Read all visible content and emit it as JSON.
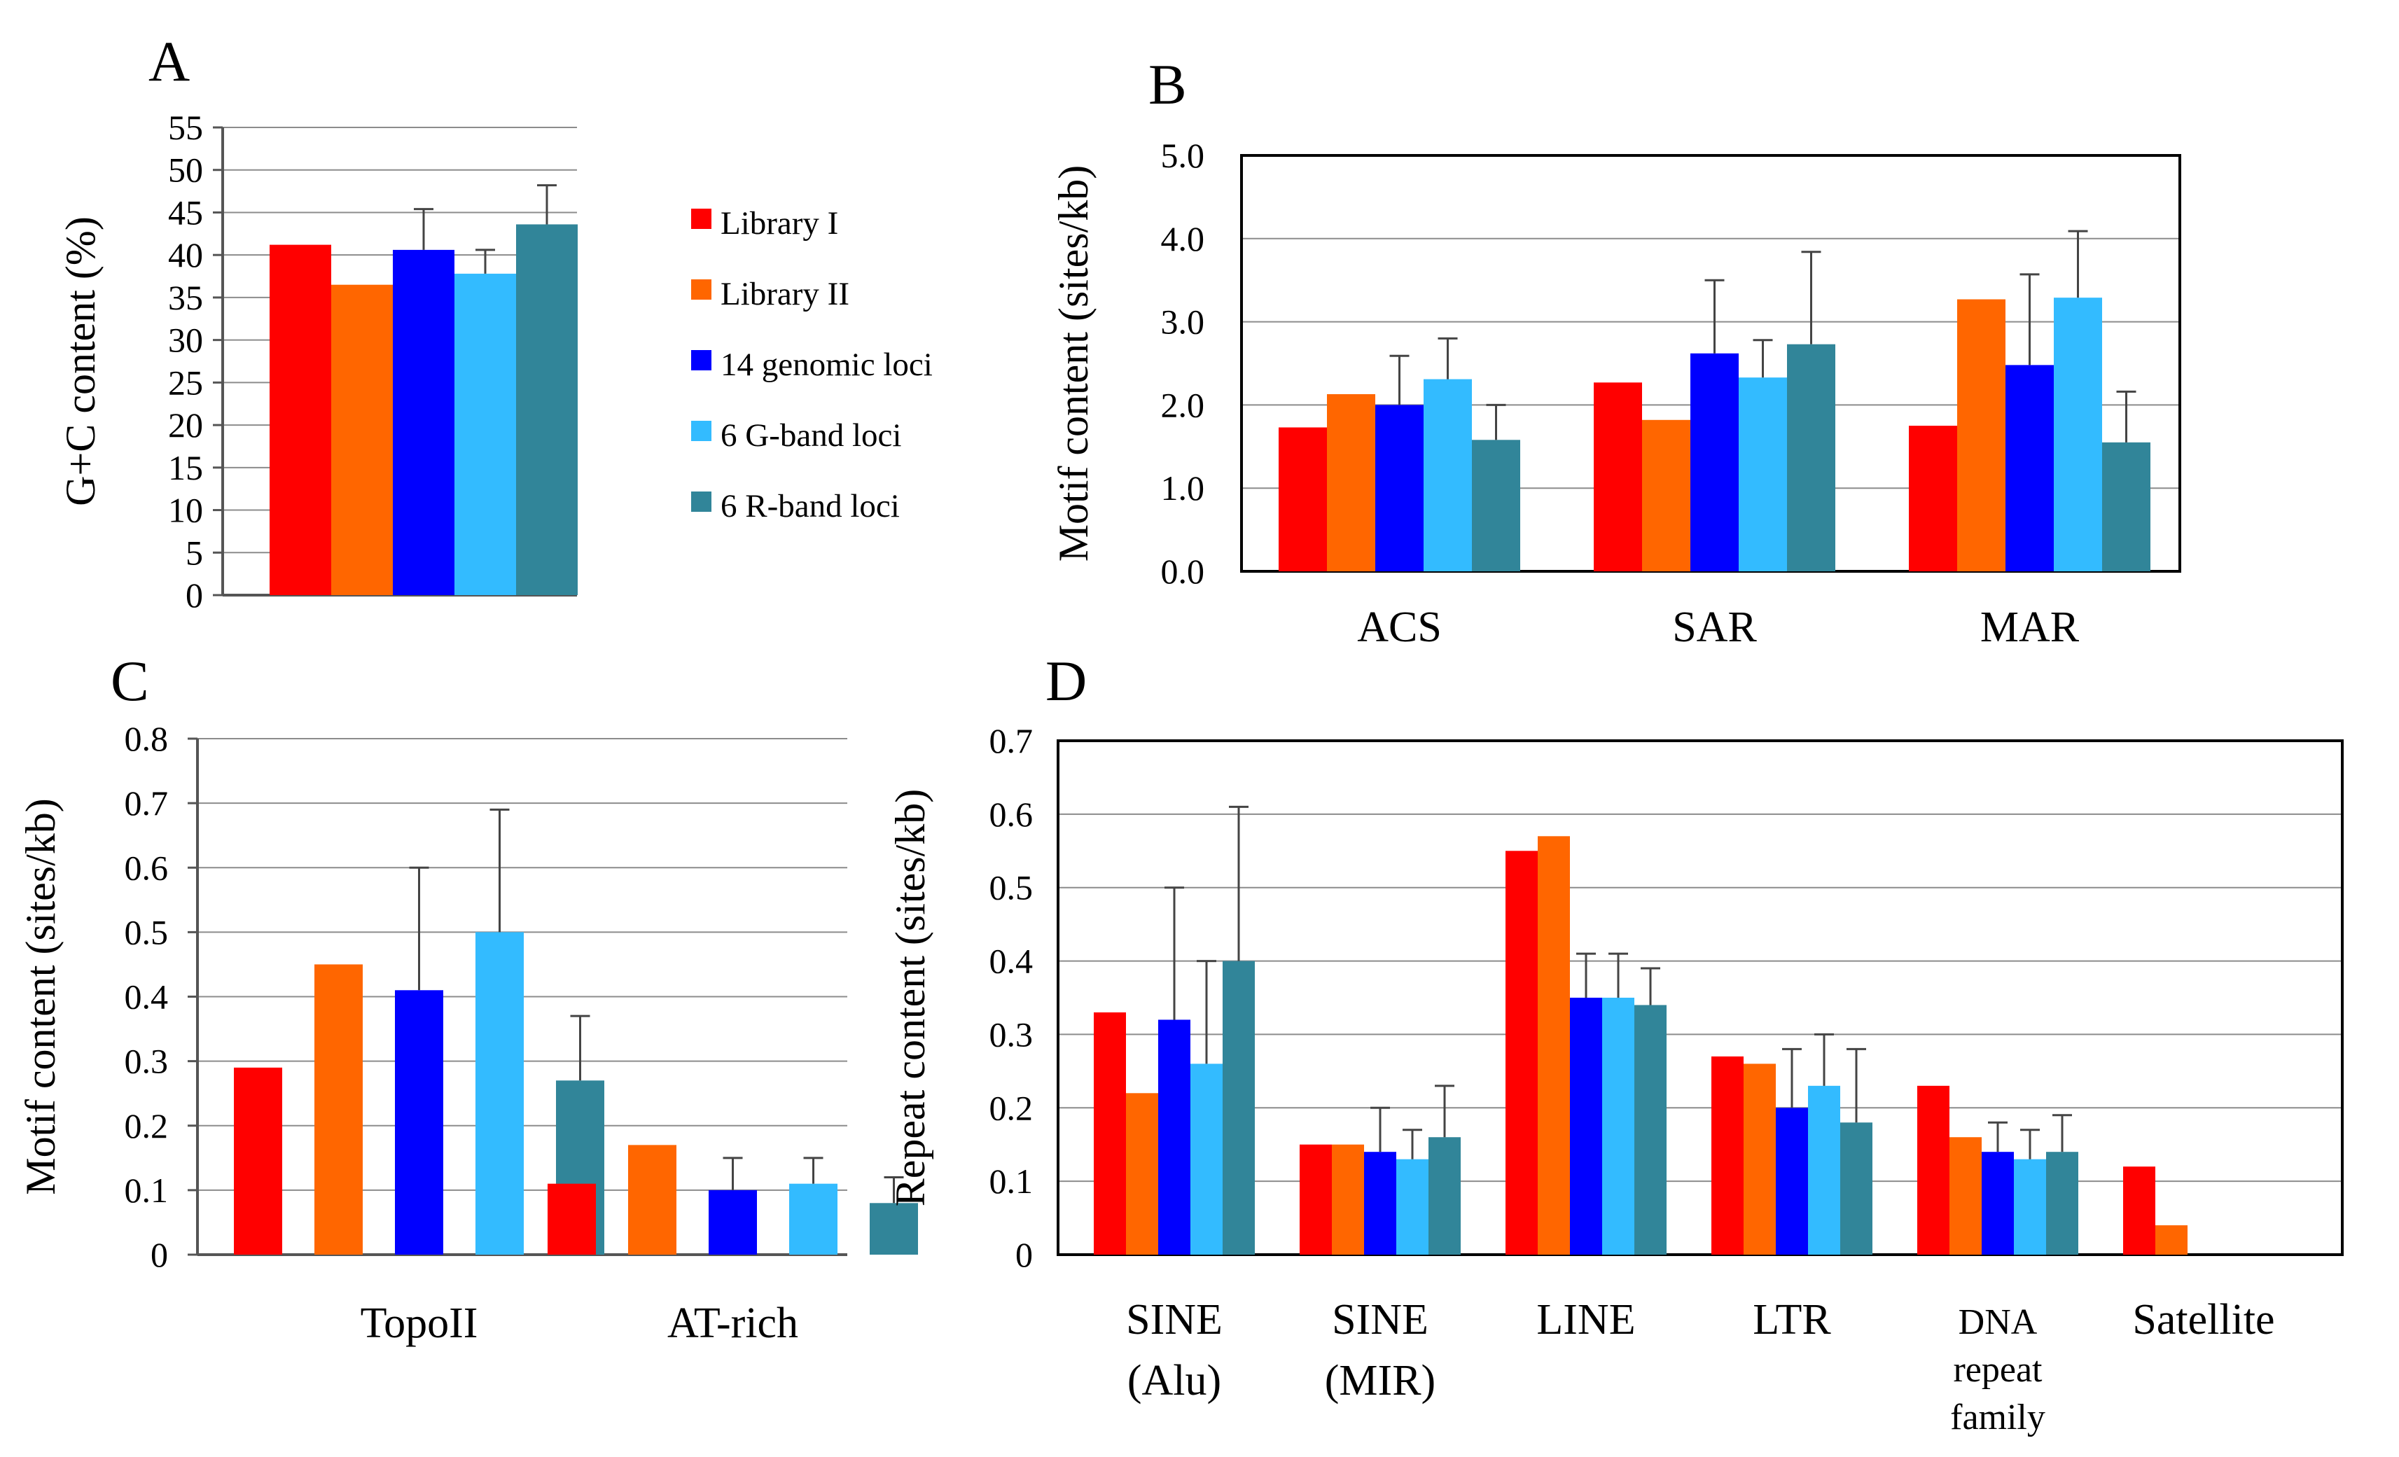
{
  "chart_data": [
    {
      "panel": "A",
      "type": "bar",
      "ylabel": "G+C content (%)",
      "ylim": [
        0,
        55
      ],
      "ytick_labels": [
        "0",
        "5",
        "10",
        "15",
        "20",
        "25",
        "30",
        "35",
        "40",
        "45",
        "50",
        "55"
      ],
      "categories": [
        ""
      ],
      "series": [
        {
          "name": "Library I",
          "values": [
            41.2
          ],
          "errors": [
            null
          ]
        },
        {
          "name": "Library II",
          "values": [
            36.5
          ],
          "errors": [
            null
          ]
        },
        {
          "name": "14 genomic loci",
          "values": [
            40.6
          ],
          "errors": [
            4.8
          ]
        },
        {
          "name": "6 G-band loci",
          "values": [
            37.8
          ],
          "errors": [
            2.8
          ]
        },
        {
          "name": "6 R-band loci",
          "values": [
            43.6
          ],
          "errors": [
            4.6
          ]
        }
      ],
      "grid": "horizontal",
      "legend": "right"
    },
    {
      "panel": "B",
      "type": "bar",
      "ylabel": "Motif content (sites/kb)",
      "ylim": [
        0,
        5
      ],
      "ytick_labels": [
        "0.0",
        "1.0",
        "2.0",
        "3.0",
        "4.0",
        "5.0"
      ],
      "categories": [
        "ACS",
        "SAR",
        "MAR"
      ],
      "series": [
        {
          "name": "Library I",
          "values": [
            1.73,
            2.27,
            1.75
          ],
          "errors": [
            null,
            null,
            null
          ]
        },
        {
          "name": "Library II",
          "values": [
            2.13,
            1.82,
            3.27
          ],
          "errors": [
            null,
            null,
            null
          ]
        },
        {
          "name": "14 genomic loci",
          "values": [
            2.0,
            2.62,
            2.48
          ],
          "errors": [
            0.59,
            0.88,
            1.09
          ]
        },
        {
          "name": "6 G-band loci",
          "values": [
            2.31,
            2.33,
            3.29
          ],
          "errors": [
            0.49,
            0.45,
            0.8
          ]
        },
        {
          "name": "6 R-band loci",
          "values": [
            1.58,
            2.73,
            1.55
          ],
          "errors": [
            0.42,
            1.11,
            0.61
          ]
        }
      ],
      "grid": "horizontal"
    },
    {
      "panel": "C",
      "type": "bar",
      "ylabel": "Motif content (sites/kb)",
      "ylim": [
        0,
        0.8
      ],
      "ytick_labels": [
        "0",
        "0.1",
        "0.2",
        "0.3",
        "0.4",
        "0.5",
        "0.6",
        "0.7",
        "0.8"
      ],
      "categories": [
        "TopoII",
        "AT-rich"
      ],
      "series": [
        {
          "name": "Library I",
          "values": [
            0.29,
            0.11
          ],
          "errors": [
            null,
            null
          ]
        },
        {
          "name": "Library II",
          "values": [
            0.45,
            0.17
          ],
          "errors": [
            null,
            null
          ]
        },
        {
          "name": "14 genomic loci",
          "values": [
            0.41,
            0.1
          ],
          "errors": [
            0.19,
            0.05
          ]
        },
        {
          "name": "6 G-band loci",
          "values": [
            0.5,
            0.11
          ],
          "errors": [
            0.19,
            0.04
          ]
        },
        {
          "name": "6 R-band loci",
          "values": [
            0.27,
            0.08
          ],
          "errors": [
            0.1,
            0.04
          ]
        }
      ],
      "grid": "horizontal"
    },
    {
      "panel": "D",
      "type": "bar",
      "ylabel": "Repeat content (sites/kb)",
      "ylim": [
        0,
        0.7
      ],
      "ytick_labels": [
        "0",
        "0.1",
        "0.2",
        "0.3",
        "0.4",
        "0.5",
        "0.6",
        "0.7"
      ],
      "categories": [
        "SINE (Alu)",
        "SINE (MIR)",
        "LINE",
        "LTR",
        "DNA repeat family",
        "Satellite"
      ],
      "category_lines": [
        [
          "SINE",
          "(Alu)"
        ],
        [
          "SINE",
          "(MIR)"
        ],
        [
          "LINE"
        ],
        [
          "LTR"
        ],
        [
          "DNA",
          "repeat",
          "family"
        ],
        [
          "Satellite"
        ]
      ],
      "series": [
        {
          "name": "Library I",
          "values": [
            0.33,
            0.15,
            0.55,
            0.27,
            0.23,
            0.12
          ],
          "errors": [
            null,
            null,
            null,
            null,
            null,
            null
          ]
        },
        {
          "name": "Library II",
          "values": [
            0.22,
            0.15,
            0.57,
            0.26,
            0.16,
            0.04
          ],
          "errors": [
            null,
            null,
            null,
            null,
            null,
            null
          ]
        },
        {
          "name": "14 genomic loci",
          "values": [
            0.32,
            0.14,
            0.35,
            0.2,
            0.14,
            0
          ],
          "errors": [
            0.18,
            0.06,
            0.06,
            0.08,
            0.04,
            null
          ]
        },
        {
          "name": "6 G-band loci",
          "values": [
            0.26,
            0.13,
            0.35,
            0.23,
            0.13,
            0
          ],
          "errors": [
            0.14,
            0.04,
            0.06,
            0.07,
            0.04,
            null
          ]
        },
        {
          "name": "6 R-band loci",
          "values": [
            0.4,
            0.16,
            0.34,
            0.18,
            0.14,
            0
          ],
          "errors": [
            0.21,
            0.07,
            0.05,
            0.1,
            0.05,
            null
          ]
        }
      ],
      "grid": "horizontal"
    }
  ],
  "series_colors": [
    "#ff0000",
    "#ff6600",
    "#0000ff",
    "#33bbff",
    "#318599"
  ],
  "legend_items": [
    "Library I",
    "Library II",
    "14 genomic loci",
    "6 G-band loci",
    "6 R-band loci"
  ],
  "panel_labels": {
    "A": "A",
    "B": "B",
    "C": "C",
    "D": "D"
  }
}
